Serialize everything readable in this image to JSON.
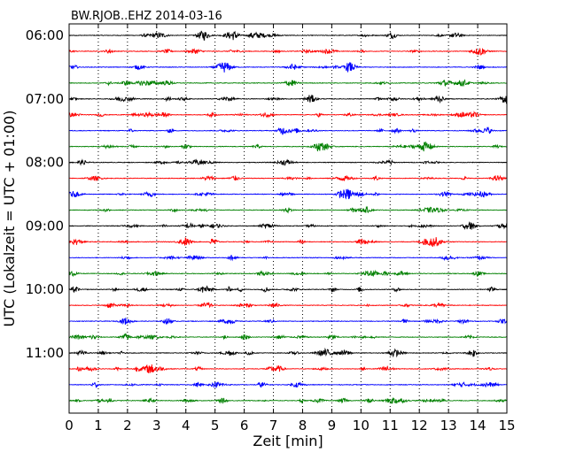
{
  "chart_data": {
    "type": "line",
    "title": "BW.RJOB..EHZ 2014-03-16",
    "xlabel": "Zeit  [min]",
    "ylabel": "UTC (Lokalzeit = UTC + 01:00)",
    "xlim": [
      0,
      15
    ],
    "x_ticks": [
      "0",
      "1",
      "2",
      "3",
      "4",
      "5",
      "6",
      "7",
      "8",
      "9",
      "10",
      "11",
      "12",
      "13",
      "14",
      "15"
    ],
    "y_ticks": [
      "06:00",
      "07:00",
      "08:00",
      "09:00",
      "10:00",
      "11:00"
    ],
    "grid": "vertical dotted",
    "trace_start": "06:00",
    "trace_interval_minutes": 15,
    "trace_count": 24,
    "trace_colors": [
      "#000000",
      "#ff0000",
      "#0000ff",
      "#008000"
    ],
    "events": [
      {
        "trace": 2,
        "minute": 5.3,
        "amplitude": 6
      },
      {
        "trace": 8,
        "minute": 7.4,
        "amplitude": 3
      },
      {
        "trace": 22,
        "minute": 5.1,
        "amplitude": 3
      }
    ]
  }
}
